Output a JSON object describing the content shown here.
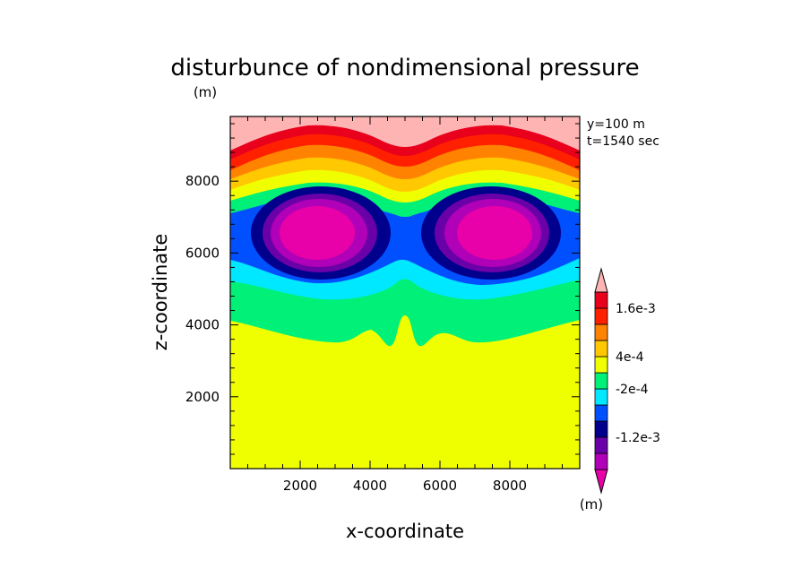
{
  "chart_data": {
    "type": "heatmap",
    "title": "disturbunce of nondimensional pressure",
    "y_unit": "(m)",
    "xlabel": "x-coordinate",
    "ylabel": "z-coordinate",
    "annotations": [
      "y=100 m",
      "t=1540 sec"
    ],
    "x_range": [
      0,
      10000
    ],
    "y_range": [
      0,
      9800
    ],
    "x_ticks": [
      2000,
      4000,
      6000,
      8000
    ],
    "x_tick_labels": [
      "2000",
      "4000",
      "6000",
      "8000"
    ],
    "y_ticks": [
      2000,
      4000,
      6000,
      8000
    ],
    "y_tick_labels": [
      "2000",
      "4000",
      "6000",
      "8000"
    ],
    "colorbar": {
      "unit": "(m)",
      "levels": [
        -0.0016,
        -0.0012,
        -0.0008,
        -0.0004,
        -0.0002,
        0,
        0.0004,
        0.0008,
        0.0012,
        0.0016,
        0.002
      ],
      "colors": [
        "#e800a8",
        "#b000b8",
        "#6a00a8",
        "#00008c",
        "#0050ff",
        "#00e8ff",
        "#00f078",
        "#f0ff00",
        "#ffc800",
        "#ff8200",
        "#ff2000",
        "#e8001c",
        "#ffb4b4"
      ],
      "labels": [
        {
          "text": "1.6e-3",
          "level": 0.0016
        },
        {
          "text": "4e-4",
          "level": 0.0004
        },
        {
          "text": "-2e-4",
          "level": -0.0002
        },
        {
          "text": "-1.2e-3",
          "level": -0.0012
        }
      ]
    },
    "bands": [
      {
        "name": "pink-top",
        "color": "#ffb4b4"
      },
      {
        "name": "crimson",
        "color": "#e8001c"
      },
      {
        "name": "red",
        "color": "#ff2000"
      },
      {
        "name": "dark-orange",
        "color": "#ff8200"
      },
      {
        "name": "orange",
        "color": "#ffc800"
      },
      {
        "name": "yellow",
        "color": "#f0ff00"
      },
      {
        "name": "green",
        "color": "#00f078"
      },
      {
        "name": "cyan",
        "color": "#00e8ff"
      },
      {
        "name": "blue",
        "color": "#0050ff"
      },
      {
        "name": "navy",
        "color": "#00008c"
      },
      {
        "name": "purple",
        "color": "#6a00a8"
      },
      {
        "name": "violet",
        "color": "#b000b8"
      },
      {
        "name": "magenta",
        "color": "#e800a8"
      }
    ]
  }
}
